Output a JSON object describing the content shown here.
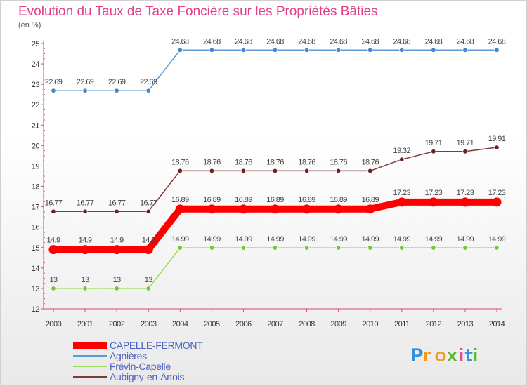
{
  "chart_data": {
    "type": "line",
    "title": "Evolution du Taux de Taxe Foncière sur les Propriétés Bâties",
    "ylabel": "(en %)",
    "xlabel": "",
    "ylim": [
      12,
      25
    ],
    "yticks": [
      12,
      13,
      14,
      15,
      16,
      17,
      18,
      19,
      20,
      21,
      22,
      23,
      24,
      25
    ],
    "categories": [
      "2000",
      "2001",
      "2002",
      "2003",
      "2004",
      "2005",
      "2006",
      "2007",
      "2008",
      "2009",
      "2010",
      "2011",
      "2012",
      "2013",
      "2014"
    ],
    "grid": false,
    "legend_position": "bottom-left",
    "series": [
      {
        "name": "Agnières",
        "color": "#5b9bd5",
        "marker": "#4a86c0",
        "values": [
          22.69,
          22.69,
          22.69,
          22.69,
          24.68,
          24.68,
          24.68,
          24.68,
          24.68,
          24.68,
          24.68,
          24.68,
          24.68,
          24.68,
          24.68
        ],
        "labels": [
          "22.69",
          "22.69",
          "22.69",
          "22.69",
          "24.68",
          "24.68",
          "24.68",
          "24.68",
          "24.68",
          "24.68",
          "24.68",
          "24.68",
          "24.68",
          "24.68",
          "24.68"
        ]
      },
      {
        "name": "Aubigny-en-Artois",
        "color": "#7a3b3b",
        "marker": "#6b2020",
        "values": [
          16.77,
          16.77,
          16.77,
          16.77,
          18.76,
          18.76,
          18.76,
          18.76,
          18.76,
          18.76,
          18.76,
          19.32,
          19.71,
          19.71,
          19.91
        ],
        "labels": [
          "16.77",
          "16.77",
          "16.77",
          "16.77",
          "18.76",
          "18.76",
          "18.76",
          "18.76",
          "18.76",
          "18.76",
          "18.76",
          "19.32",
          "19.71",
          "19.71",
          "19.91"
        ]
      },
      {
        "name": "CAPELLE-FERMONT",
        "color": "#ff0000",
        "marker": "#ff0000",
        "values": [
          14.9,
          14.9,
          14.9,
          14.9,
          16.89,
          16.89,
          16.89,
          16.89,
          16.89,
          16.89,
          16.89,
          17.23,
          17.23,
          17.23,
          17.23
        ],
        "labels": [
          "14.9",
          "14.9",
          "14.9",
          "14.9",
          "16.89",
          "16.89",
          "16.89",
          "16.89",
          "16.89",
          "16.89",
          "16.89",
          "17.23",
          "17.23",
          "17.23",
          "17.23"
        ]
      },
      {
        "name": "Frévin-Capelle",
        "color": "#99dd55",
        "marker": "#77c43a",
        "values": [
          13,
          13,
          13,
          13,
          14.99,
          14.99,
          14.99,
          14.99,
          14.99,
          14.99,
          14.99,
          14.99,
          14.99,
          14.99,
          14.99
        ],
        "labels": [
          "13",
          "13",
          "13",
          "13",
          "14.99",
          "14.99",
          "14.99",
          "14.99",
          "14.99",
          "14.99",
          "14.99",
          "14.99",
          "14.99",
          "14.99",
          "14.99"
        ]
      }
    ],
    "legend": [
      {
        "name": "CAPELLE-FERMONT",
        "color": "#ff0000"
      },
      {
        "name": "Agnières",
        "color": "#5b9bd5"
      },
      {
        "name": "Frévin-Capelle",
        "color": "#99dd55"
      },
      {
        "name": "Aubigny-en-Artois",
        "color": "#7a3b3b"
      }
    ]
  },
  "brand": {
    "letters": [
      "P",
      "r",
      "o",
      "x",
      "i",
      "t",
      "i"
    ],
    "colors": [
      "#3a8fd8",
      "#f29a1f",
      "#f29a1f",
      "#5bb82c",
      "#e24a8d",
      "#3a8fd8",
      "#5bb82c"
    ]
  }
}
